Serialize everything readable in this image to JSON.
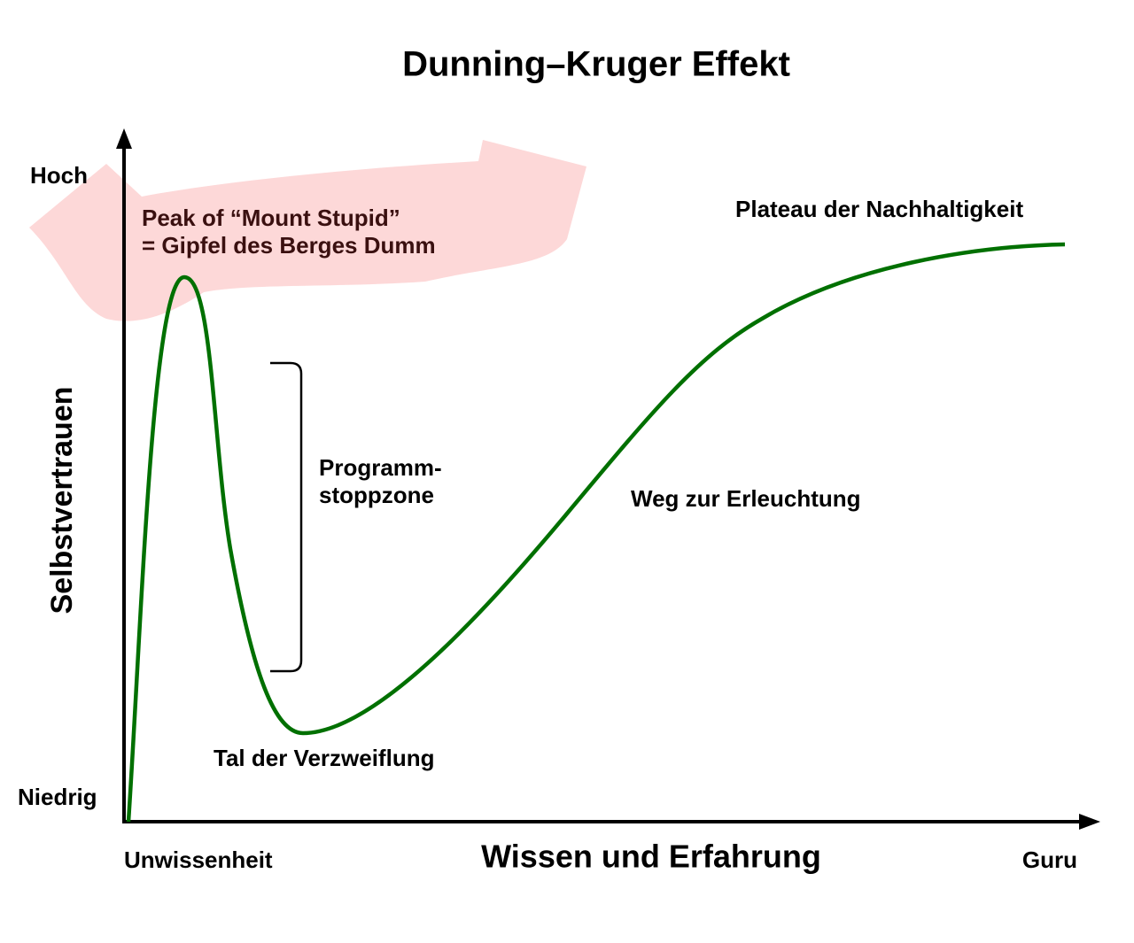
{
  "title": "Dunning–Kruger Effekt",
  "y_axis": {
    "label": "Selbstvertrauen",
    "high": "Hoch",
    "low": "Niedrig"
  },
  "x_axis": {
    "label": "Wissen und Erfahrung",
    "low": "Unwissenheit",
    "high": "Guru"
  },
  "annotations": {
    "peak": [
      "Peak of “Mount Stupid”",
      "= Gipfel des Berges Dumm"
    ],
    "stop_zone": [
      "Programm-",
      "stoppzone"
    ],
    "valley": "Tal der Verzweiflung",
    "slope": "Weg zur Erleuchtung",
    "plateau": "Plateau der Nachhaltigkeit"
  }
}
